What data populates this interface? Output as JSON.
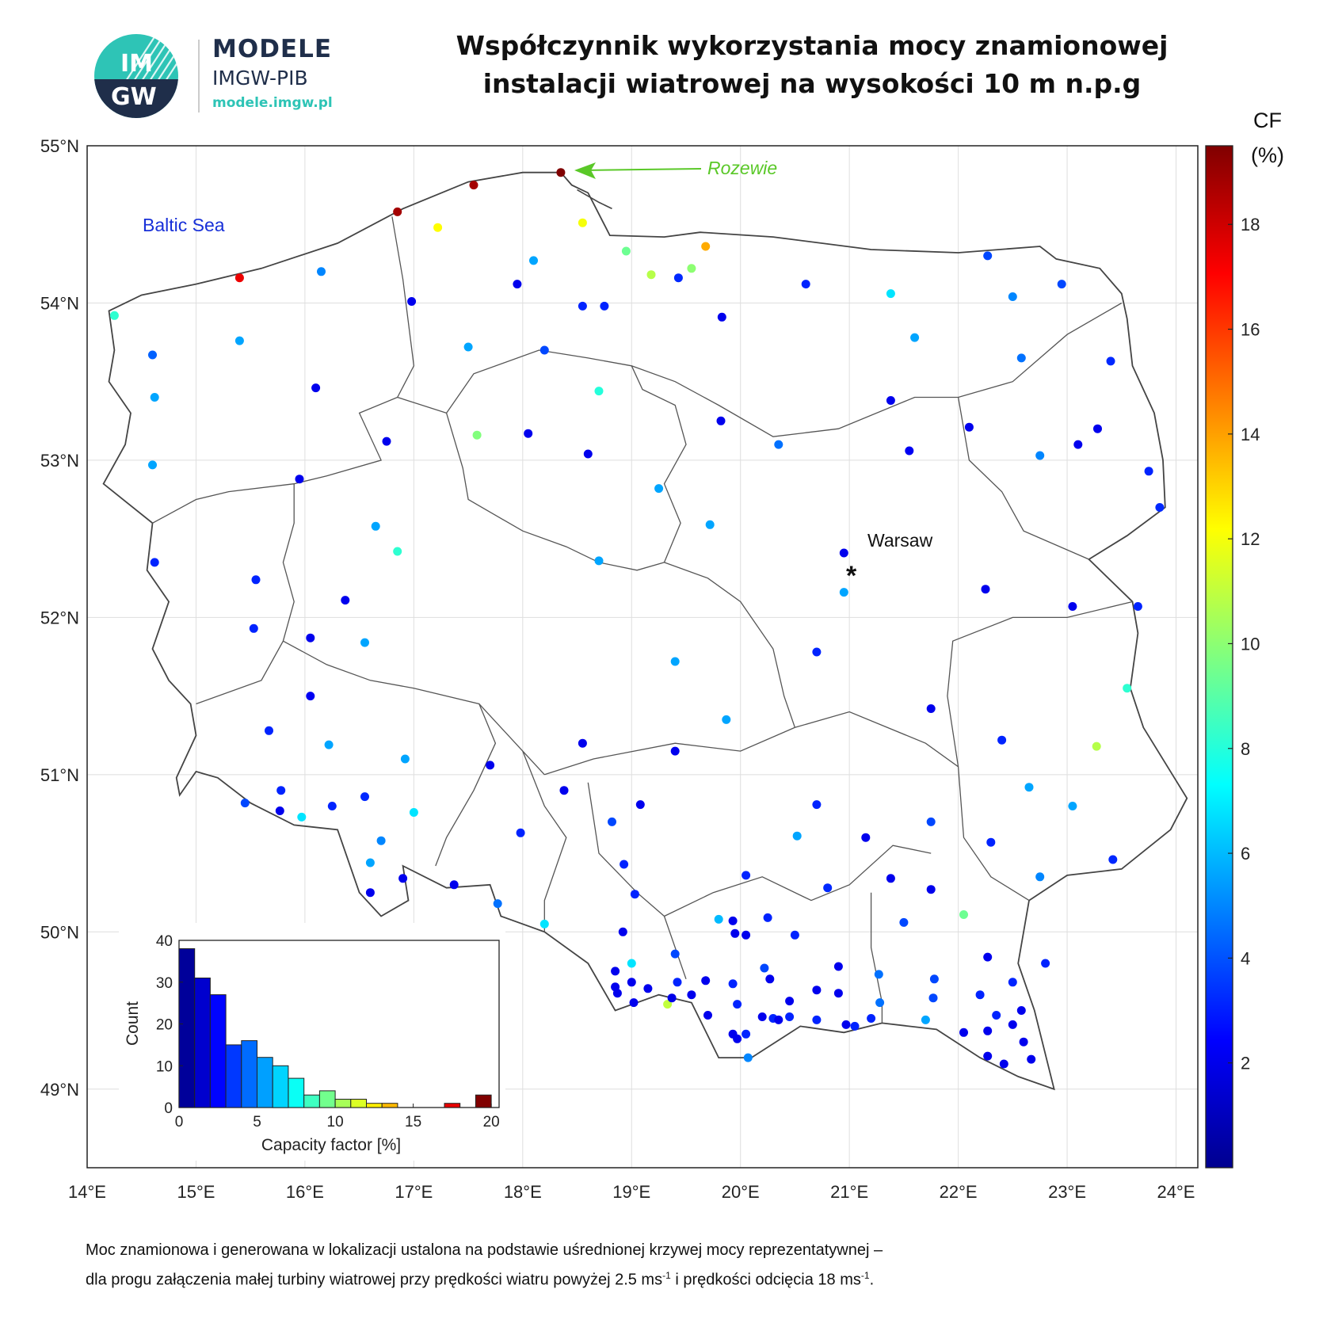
{
  "header": {
    "logo": {
      "text_top": "IM",
      "text_bottom": "GW",
      "brand": "MODELE",
      "org": "IMGW-PIB",
      "url": "modele.imgw.pl"
    },
    "title_line1": "Współczynnik wykorzystania mocy znamionowej",
    "title_line2": "instalacji wiatrowej na wysokości 10 m n.p.g"
  },
  "colorbar": {
    "label_line1": "CF",
    "label_line2": "(%)",
    "min": 0,
    "max": 19.5,
    "ticks": [
      2,
      4,
      6,
      8,
      10,
      12,
      14,
      16,
      18
    ],
    "colormap": "jet"
  },
  "map": {
    "lon_range": [
      14,
      24.2
    ],
    "lat_range": [
      48.5,
      55
    ],
    "lon_ticks": [
      14,
      15,
      16,
      17,
      18,
      19,
      20,
      21,
      22,
      23,
      24
    ],
    "lat_ticks": [
      49,
      50,
      51,
      52,
      53,
      54,
      55
    ],
    "lon_tick_labels": [
      "14°E",
      "15°E",
      "16°E",
      "17°E",
      "18°E",
      "19°E",
      "20°E",
      "21°E",
      "22°E",
      "23°E",
      "24°E"
    ],
    "lat_tick_labels": [
      "49°N",
      "50°N",
      "51°N",
      "52°N",
      "53°N",
      "54°N",
      "55°N"
    ],
    "grid": true,
    "labels": {
      "sea": "Baltic Sea",
      "capital": "Warsaw",
      "station": "Rozewie"
    },
    "capital_marker": "*",
    "stations_cf": [
      [
        14.25,
        53.92,
        8.2
      ],
      [
        14.6,
        53.67,
        4.3
      ],
      [
        14.62,
        53.4,
        5.6
      ],
      [
        14.6,
        52.97,
        5.6
      ],
      [
        14.62,
        52.35,
        3.1
      ],
      [
        15.4,
        54.16,
        17.4
      ],
      [
        15.4,
        53.76,
        5.6
      ],
      [
        16.15,
        54.2,
        5.0
      ],
      [
        16.85,
        54.58,
        18.8
      ],
      [
        17.55,
        54.75,
        18.8
      ],
      [
        18.35,
        54.83,
        19.5
      ],
      [
        17.22,
        54.48,
        12.2
      ],
      [
        18.55,
        54.51,
        12.0
      ],
      [
        18.1,
        54.27,
        5.6
      ],
      [
        17.95,
        54.12,
        2.1
      ],
      [
        16.98,
        54.01,
        2.1
      ],
      [
        18.55,
        53.98,
        3.1
      ],
      [
        18.75,
        53.98,
        3.1
      ],
      [
        18.95,
        54.33,
        9.4
      ],
      [
        19.18,
        54.18,
        10.8
      ],
      [
        19.55,
        54.22,
        10.0
      ],
      [
        19.68,
        54.36,
        13.8
      ],
      [
        19.43,
        54.16,
        3.2
      ],
      [
        17.5,
        53.72,
        5.6
      ],
      [
        18.2,
        53.7,
        3.8
      ],
      [
        19.83,
        53.91,
        2.1
      ],
      [
        20.6,
        54.12,
        3.1
      ],
      [
        21.38,
        54.06,
        6.8
      ],
      [
        21.6,
        53.78,
        5.6
      ],
      [
        22.27,
        54.3,
        3.8
      ],
      [
        22.5,
        54.04,
        5.0
      ],
      [
        22.95,
        54.12,
        3.8
      ],
      [
        22.58,
        53.65,
        4.6
      ],
      [
        23.4,
        53.63,
        3.2
      ],
      [
        16.1,
        53.46,
        2.1
      ],
      [
        16.75,
        53.12,
        2.1
      ],
      [
        18.7,
        53.44,
        8.0
      ],
      [
        17.58,
        53.16,
        9.8
      ],
      [
        18.05,
        53.17,
        2.1
      ],
      [
        18.6,
        53.04,
        2.1
      ],
      [
        19.82,
        53.25,
        2.1
      ],
      [
        20.35,
        53.1,
        4.6
      ],
      [
        21.38,
        53.38,
        2.1
      ],
      [
        21.55,
        53.06,
        2.2
      ],
      [
        22.1,
        53.21,
        2.1
      ],
      [
        23.1,
        53.1,
        2.1
      ],
      [
        23.28,
        53.2,
        2.1
      ],
      [
        22.75,
        53.03,
        5.0
      ],
      [
        23.75,
        52.93,
        3.1
      ],
      [
        23.85,
        52.7,
        3.2
      ],
      [
        15.95,
        52.88,
        2.1
      ],
      [
        16.65,
        52.58,
        5.6
      ],
      [
        16.85,
        52.42,
        8.2
      ],
      [
        18.7,
        52.36,
        5.6
      ],
      [
        19.25,
        52.82,
        5.6
      ],
      [
        19.72,
        52.59,
        5.6
      ],
      [
        20.95,
        52.41,
        2.1
      ],
      [
        20.95,
        52.16,
        5.6
      ],
      [
        15.55,
        52.24,
        3.1
      ],
      [
        16.37,
        52.11,
        2.1
      ],
      [
        15.53,
        51.93,
        3.1
      ],
      [
        16.05,
        51.87,
        2.1
      ],
      [
        16.55,
        51.84,
        5.6
      ],
      [
        20.7,
        51.78,
        3.1
      ],
      [
        22.25,
        52.18,
        2.1
      ],
      [
        23.05,
        52.07,
        2.1
      ],
      [
        23.65,
        52.07,
        3.1
      ],
      [
        19.4,
        51.72,
        5.6
      ],
      [
        19.87,
        51.35,
        5.6
      ],
      [
        21.75,
        51.42,
        2.1
      ],
      [
        23.55,
        51.55,
        8.2
      ],
      [
        23.27,
        51.18,
        10.8
      ],
      [
        16.05,
        51.5,
        2.2
      ],
      [
        15.67,
        51.28,
        3.1
      ],
      [
        16.22,
        51.19,
        5.6
      ],
      [
        16.92,
        51.1,
        5.6
      ],
      [
        17.7,
        51.06,
        2.1
      ],
      [
        18.55,
        51.2,
        2.1
      ],
      [
        19.4,
        51.15,
        2.1
      ],
      [
        22.4,
        51.22,
        3.1
      ],
      [
        15.45,
        50.82,
        3.8
      ],
      [
        15.78,
        50.9,
        3.1
      ],
      [
        15.77,
        50.77,
        2.1
      ],
      [
        15.97,
        50.73,
        6.8
      ],
      [
        16.25,
        50.8,
        3.1
      ],
      [
        16.55,
        50.86,
        3.2
      ],
      [
        17.0,
        50.76,
        6.8
      ],
      [
        18.38,
        50.9,
        2.1
      ],
      [
        19.08,
        50.81,
        2.1
      ],
      [
        18.82,
        50.7,
        3.8
      ],
      [
        20.7,
        50.81,
        3.1
      ],
      [
        21.75,
        50.7,
        3.8
      ],
      [
        22.65,
        50.92,
        5.6
      ],
      [
        23.05,
        50.8,
        5.6
      ],
      [
        17.98,
        50.63,
        3.1
      ],
      [
        20.52,
        50.61,
        5.6
      ],
      [
        21.15,
        50.6,
        2.1
      ],
      [
        22.3,
        50.57,
        3.1
      ],
      [
        23.42,
        50.46,
        3.2
      ],
      [
        16.7,
        50.58,
        5.0
      ],
      [
        16.6,
        50.44,
        5.6
      ],
      [
        16.6,
        50.25,
        2.1
      ],
      [
        16.9,
        50.34,
        2.1
      ],
      [
        17.37,
        50.3,
        2.1
      ],
      [
        18.93,
        50.43,
        3.1
      ],
      [
        19.03,
        50.24,
        3.1
      ],
      [
        20.05,
        50.36,
        3.1
      ],
      [
        20.8,
        50.28,
        3.2
      ],
      [
        21.38,
        50.34,
        2.1
      ],
      [
        21.75,
        50.27,
        2.1
      ],
      [
        22.75,
        50.35,
        5.0
      ],
      [
        17.77,
        50.18,
        4.6
      ],
      [
        18.2,
        50.05,
        6.8
      ],
      [
        19.8,
        50.08,
        6.0
      ],
      [
        19.93,
        50.07,
        2.1
      ],
      [
        20.25,
        50.09,
        3.1
      ],
      [
        21.5,
        50.06,
        3.8
      ],
      [
        22.05,
        50.11,
        9.4
      ],
      [
        18.92,
        50.0,
        2.1
      ],
      [
        19.95,
        49.99,
        2.1
      ],
      [
        20.05,
        49.98,
        2.1
      ],
      [
        20.5,
        49.98,
        3.1
      ],
      [
        19.0,
        49.8,
        6.8
      ],
      [
        19.4,
        49.86,
        3.8
      ],
      [
        20.22,
        49.77,
        3.8
      ],
      [
        20.9,
        49.78,
        2.1
      ],
      [
        21.27,
        49.73,
        4.6
      ],
      [
        22.27,
        49.84,
        2.1
      ],
      [
        22.8,
        49.8,
        3.1
      ],
      [
        18.85,
        49.75,
        2.1
      ],
      [
        18.85,
        49.65,
        2.1
      ],
      [
        18.87,
        49.61,
        2.1
      ],
      [
        19.0,
        49.68,
        2.1
      ],
      [
        19.15,
        49.64,
        2.1
      ],
      [
        19.02,
        49.55,
        2.1
      ],
      [
        19.42,
        49.68,
        3.1
      ],
      [
        19.55,
        49.6,
        2.1
      ],
      [
        19.68,
        49.69,
        2.1
      ],
      [
        19.93,
        49.67,
        3.1
      ],
      [
        20.27,
        49.7,
        2.1
      ],
      [
        20.7,
        49.63,
        2.1
      ],
      [
        20.9,
        49.61,
        2.1
      ],
      [
        21.28,
        49.55,
        4.6
      ],
      [
        21.77,
        49.58,
        3.8
      ],
      [
        21.78,
        49.7,
        3.8
      ],
      [
        22.2,
        49.6,
        3.1
      ],
      [
        22.5,
        49.68,
        3.1
      ],
      [
        19.33,
        49.54,
        11.0
      ],
      [
        19.37,
        49.58,
        2.0
      ],
      [
        19.7,
        49.47,
        2.1
      ],
      [
        19.97,
        49.54,
        3.1
      ],
      [
        20.45,
        49.56,
        2.1
      ],
      [
        20.2,
        49.46,
        2.1
      ],
      [
        20.3,
        49.45,
        3.1
      ],
      [
        20.35,
        49.44,
        2.1
      ],
      [
        20.45,
        49.46,
        3.1
      ],
      [
        20.7,
        49.44,
        3.1
      ],
      [
        20.97,
        49.41,
        2.1
      ],
      [
        21.05,
        49.4,
        3.1
      ],
      [
        21.2,
        49.45,
        3.1
      ],
      [
        21.7,
        49.44,
        5.6
      ],
      [
        22.35,
        49.47,
        3.1
      ],
      [
        22.5,
        49.41,
        2.1
      ],
      [
        22.58,
        49.5,
        2.1
      ],
      [
        19.93,
        49.35,
        2.1
      ],
      [
        19.97,
        49.32,
        2.1
      ],
      [
        20.05,
        49.35,
        3.1
      ],
      [
        22.05,
        49.36,
        2.1
      ],
      [
        22.27,
        49.37,
        2.1
      ],
      [
        22.6,
        49.3,
        2.1
      ],
      [
        20.07,
        49.2,
        5.0
      ],
      [
        22.27,
        49.21,
        2.1
      ],
      [
        22.42,
        49.16,
        2.1
      ],
      [
        22.67,
        49.19,
        2.1
      ]
    ]
  },
  "inset": {
    "chart_data": {
      "type": "bar",
      "xlabel": "Capacity factor [%]",
      "ylabel": "Count",
      "xlim": [
        0,
        20.5
      ],
      "ylim": [
        0,
        40
      ],
      "x_ticks": [
        0,
        5,
        10,
        15,
        20
      ],
      "y_ticks": [
        0,
        10,
        20,
        30,
        40
      ],
      "bin_width": 1,
      "bin_starts": [
        0,
        1,
        2,
        3,
        4,
        5,
        6,
        7,
        8,
        9,
        10,
        11,
        12,
        13,
        14,
        15,
        16,
        17,
        18,
        19
      ],
      "values": [
        38,
        31,
        27,
        15,
        16,
        12,
        10,
        7,
        3,
        4,
        2,
        2,
        1,
        1,
        0,
        0,
        0,
        1,
        0,
        3
      ]
    }
  },
  "footnote": {
    "line1": "Moc znamionowa i generowana w lokalizacji ustalona na podstawie uśrednionej krzywej mocy reprezentatywnej –",
    "line2_a": "dla progu załączenia małej turbiny wiatrowej przy prędkości wiatru powyżej 2.5 ms",
    "sup1": "-1",
    "line2_b": " i prędkości odcięcia 18 ms",
    "sup2": "-1",
    "line2_c": "."
  }
}
